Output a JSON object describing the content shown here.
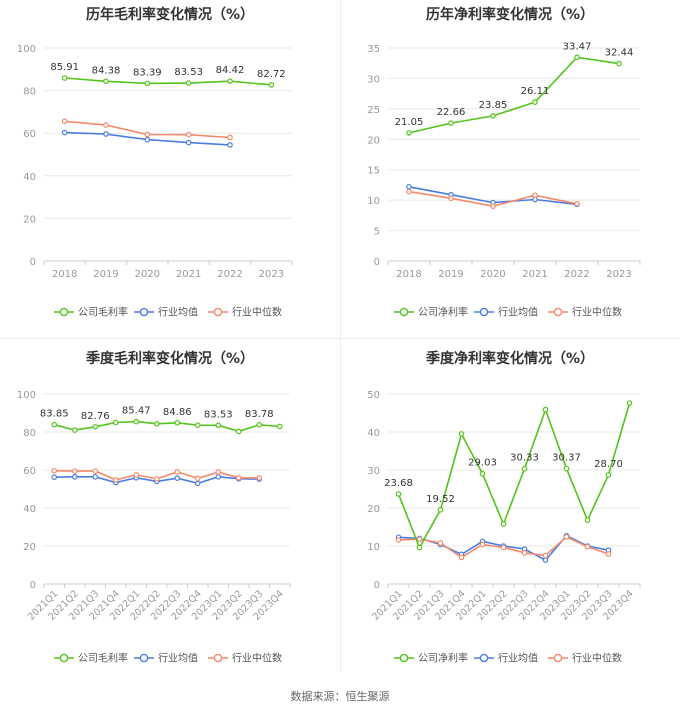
{
  "colors": {
    "green": "#52c41a",
    "blue": "#4a7de3",
    "orange": "#f4896b",
    "grid": "#e8e8e8",
    "axis": "#cccccc",
    "tick_text": "#999999",
    "title": "#333333"
  },
  "source_text": "数据来源：恒生聚源",
  "chart_data": [
    {
      "type": "line",
      "title": "历年毛利率变化情况（%）",
      "categories": [
        "2018",
        "2019",
        "2020",
        "2021",
        "2022",
        "2023"
      ],
      "ylim": [
        0,
        100
      ],
      "yticks": [
        0,
        20,
        40,
        60,
        80,
        100
      ],
      "rotate_x": false,
      "series": [
        {
          "name": "公司毛利率",
          "color": "green",
          "values": [
            85.91,
            84.38,
            83.39,
            83.53,
            84.42,
            82.72
          ],
          "labels": [
            "85.91",
            "84.38",
            "83.39",
            "83.53",
            "84.42",
            "82.72"
          ]
        },
        {
          "name": "行业均值",
          "color": "blue",
          "values": [
            60.3,
            59.6,
            57.0,
            55.6,
            54.5,
            null
          ],
          "labels": []
        },
        {
          "name": "行业中位数",
          "color": "orange",
          "values": [
            65.6,
            63.8,
            59.4,
            59.3,
            58.0,
            null
          ],
          "labels": []
        }
      ],
      "legend": [
        "公司毛利率",
        "行业均值",
        "行业中位数"
      ],
      "grid": true,
      "legend_position": "bottom"
    },
    {
      "type": "line",
      "title": "历年净利率变化情况（%）",
      "categories": [
        "2018",
        "2019",
        "2020",
        "2021",
        "2022",
        "2023"
      ],
      "ylim": [
        0,
        35
      ],
      "yticks": [
        0,
        5,
        10,
        15,
        20,
        25,
        30,
        35
      ],
      "rotate_x": false,
      "series": [
        {
          "name": "公司净利率",
          "color": "green",
          "values": [
            21.05,
            22.66,
            23.85,
            26.11,
            33.47,
            32.44
          ],
          "labels": [
            "21.05",
            "22.66",
            "23.85",
            "26.11",
            "33.47",
            "32.44"
          ]
        },
        {
          "name": "行业均值",
          "color": "blue",
          "values": [
            12.2,
            10.9,
            9.6,
            10.1,
            9.3,
            null
          ],
          "labels": []
        },
        {
          "name": "行业中位数",
          "color": "orange",
          "values": [
            11.4,
            10.3,
            9.0,
            10.8,
            9.4,
            null
          ],
          "labels": []
        }
      ],
      "legend": [
        "公司净利率",
        "行业均值",
        "行业中位数"
      ],
      "grid": true,
      "legend_position": "bottom"
    },
    {
      "type": "line",
      "title": "季度毛利率变化情况（%）",
      "categories": [
        "2021Q1",
        "2021Q2",
        "2021Q3",
        "2021Q4",
        "2022Q1",
        "2022Q2",
        "2022Q3",
        "2022Q4",
        "2023Q1",
        "2023Q2",
        "2023Q3",
        "2023Q4"
      ],
      "ylim": [
        0,
        100
      ],
      "yticks": [
        0,
        20,
        40,
        60,
        80,
        100
      ],
      "rotate_x": true,
      "series": [
        {
          "name": "公司毛利率",
          "color": "green",
          "values": [
            83.85,
            81.0,
            82.76,
            85.0,
            85.47,
            84.3,
            84.86,
            83.6,
            83.53,
            80.3,
            83.78,
            82.9
          ],
          "labels": [
            "83.85",
            "",
            "82.76",
            "",
            "85.47",
            "",
            "84.86",
            "",
            "83.53",
            "",
            "83.78",
            ""
          ]
        },
        {
          "name": "行业均值",
          "color": "blue",
          "values": [
            56.2,
            56.4,
            56.4,
            53.4,
            55.9,
            54.0,
            55.7,
            53.0,
            56.4,
            55.4,
            55.2,
            null
          ],
          "labels": []
        },
        {
          "name": "行业中位数",
          "color": "orange",
          "values": [
            59.6,
            59.4,
            59.4,
            54.8,
            57.4,
            55.3,
            59.0,
            55.6,
            58.9,
            55.9,
            55.8,
            null
          ],
          "labels": []
        }
      ],
      "legend": [
        "公司毛利率",
        "行业均值",
        "行业中位数"
      ],
      "grid": true,
      "legend_position": "bottom"
    },
    {
      "type": "line",
      "title": "季度净利率变化情况（%）",
      "categories": [
        "2021Q1",
        "2021Q2",
        "2021Q3",
        "2021Q4",
        "2022Q1",
        "2022Q2",
        "2022Q3",
        "2022Q4",
        "2023Q1",
        "2023Q2",
        "2023Q3",
        "2023Q4"
      ],
      "ylim": [
        0,
        50
      ],
      "yticks": [
        0,
        10,
        20,
        30,
        40,
        50
      ],
      "rotate_x": true,
      "series": [
        {
          "name": "公司净利率",
          "color": "green",
          "values": [
            23.68,
            9.6,
            19.52,
            39.5,
            29.03,
            15.8,
            30.33,
            45.9,
            30.37,
            16.8,
            28.7,
            47.6
          ],
          "labels": [
            "23.68",
            "",
            "19.52",
            "",
            "29.03",
            "",
            "30.33",
            "",
            "30.37",
            "",
            "28.70",
            ""
          ]
        },
        {
          "name": "行业均值",
          "color": "blue",
          "values": [
            12.3,
            12.0,
            10.4,
            7.8,
            11.2,
            10.0,
            9.2,
            6.3,
            12.7,
            10.0,
            8.9,
            null
          ],
          "labels": []
        },
        {
          "name": "行业中位数",
          "color": "orange",
          "values": [
            11.6,
            11.8,
            10.8,
            7.0,
            10.4,
            9.6,
            8.2,
            7.5,
            12.4,
            9.8,
            7.9,
            null
          ],
          "labels": []
        }
      ],
      "legend": [
        "公司净利率",
        "行业均值",
        "行业中位数"
      ],
      "grid": true,
      "legend_position": "bottom"
    }
  ]
}
